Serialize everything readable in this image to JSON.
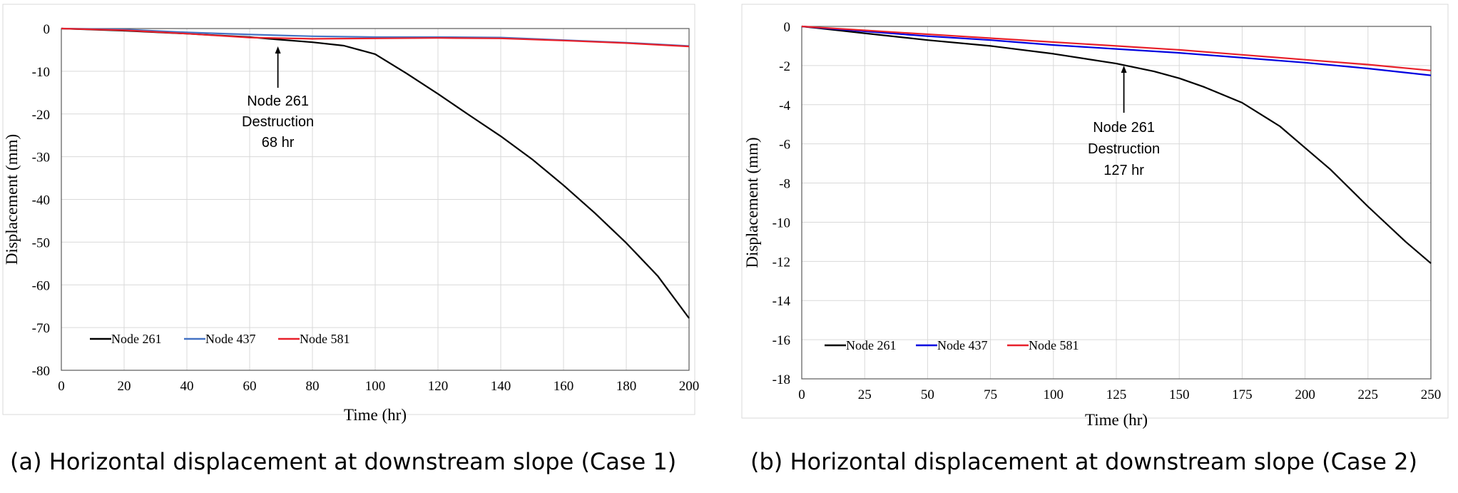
{
  "chart_data": [
    {
      "type": "line",
      "caption": "(a) Horizontal displacement at downstream slope (Case 1)",
      "xlabel": "Time (hr)",
      "ylabel": "Displacement (mm)",
      "xlim": [
        0,
        200
      ],
      "ylim": [
        -80,
        0
      ],
      "xticks": [
        0,
        20,
        40,
        60,
        80,
        100,
        120,
        140,
        160,
        180,
        200
      ],
      "yticks": [
        0,
        -10,
        -20,
        -30,
        -40,
        -50,
        -60,
        -70,
        -80
      ],
      "grid": true,
      "legend_position": "bottom-left",
      "annotation": {
        "lines": [
          "Node 261",
          "Destruction",
          "68 hr"
        ],
        "x": 69,
        "y": -3
      },
      "series": [
        {
          "name": "Node 261",
          "color": "#000000",
          "x": [
            0,
            20,
            40,
            60,
            68,
            80,
            90,
            100,
            110,
            120,
            130,
            140,
            150,
            160,
            170,
            180,
            190,
            200
          ],
          "y": [
            0,
            -0.5,
            -1.2,
            -2.0,
            -2.5,
            -3.2,
            -4.0,
            -6.0,
            -10.5,
            -15.3,
            -20.3,
            -25.2,
            -30.6,
            -36.7,
            -43.2,
            -50.2,
            -57.9,
            -67.8
          ]
        },
        {
          "name": "Node 437",
          "color": "#4472C4",
          "x": [
            0,
            20,
            40,
            60,
            80,
            100,
            120,
            140,
            160,
            180,
            200
          ],
          "y": [
            0,
            -0.2,
            -0.9,
            -1.4,
            -1.8,
            -2.0,
            -2.0,
            -2.1,
            -2.7,
            -3.3,
            -4.1
          ]
        },
        {
          "name": "Node 581",
          "color": "#E8202A",
          "x": [
            0,
            20,
            40,
            60,
            80,
            100,
            120,
            140,
            160,
            180,
            200
          ],
          "y": [
            0,
            -0.4,
            -1.2,
            -2.1,
            -2.4,
            -2.3,
            -2.2,
            -2.3,
            -2.8,
            -3.4,
            -4.2
          ]
        }
      ]
    },
    {
      "type": "line",
      "caption": "(b) Horizontal displacement at downstream slope (Case 2)",
      "xlabel": "Time (hr)",
      "ylabel": "Displacement (mm)",
      "xlim": [
        0,
        250
      ],
      "ylim": [
        -18,
        0
      ],
      "xticks": [
        0,
        25,
        50,
        75,
        100,
        125,
        150,
        175,
        200,
        225,
        250
      ],
      "yticks": [
        0,
        -2,
        -4,
        -6,
        -8,
        -10,
        -12,
        -14,
        -16,
        -18
      ],
      "grid": true,
      "legend_position": "bottom-left",
      "annotation": {
        "lines": [
          "Node 261",
          "Destruction",
          "127 hr"
        ],
        "x": 128,
        "y": -1.95
      },
      "series": [
        {
          "name": "Node 261",
          "color": "#000000",
          "x": [
            0,
            25,
            50,
            75,
            100,
            125,
            140,
            150,
            160,
            175,
            190,
            200,
            210,
            225,
            240,
            250
          ],
          "y": [
            0,
            -0.35,
            -0.7,
            -1.0,
            -1.4,
            -1.9,
            -2.3,
            -2.65,
            -3.1,
            -3.9,
            -5.1,
            -6.2,
            -7.3,
            -9.2,
            -11.0,
            -12.1
          ]
        },
        {
          "name": "Node 437",
          "color": "#0000E0",
          "x": [
            0,
            25,
            50,
            75,
            100,
            125,
            150,
            175,
            200,
            225,
            250
          ],
          "y": [
            0,
            -0.25,
            -0.5,
            -0.7,
            -0.95,
            -1.15,
            -1.35,
            -1.6,
            -1.85,
            -2.15,
            -2.5
          ]
        },
        {
          "name": "Node 581",
          "color": "#E8202A",
          "x": [
            0,
            25,
            50,
            75,
            100,
            125,
            150,
            175,
            200,
            225,
            250
          ],
          "y": [
            0,
            -0.2,
            -0.4,
            -0.6,
            -0.8,
            -1.0,
            -1.2,
            -1.45,
            -1.7,
            -1.95,
            -2.25
          ]
        }
      ]
    }
  ]
}
